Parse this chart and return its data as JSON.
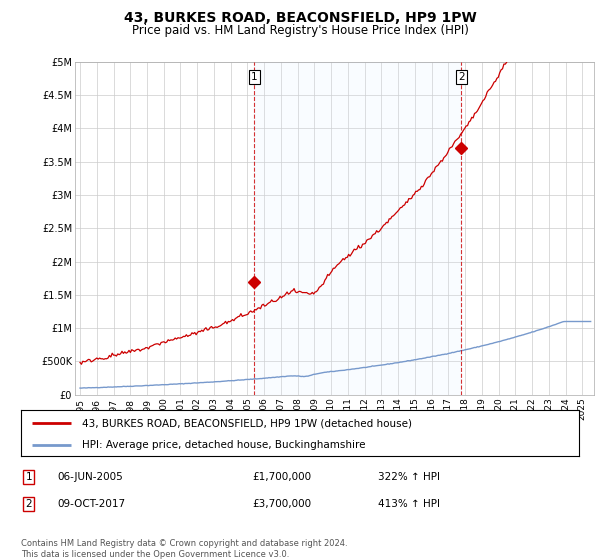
{
  "title": "43, BURKES ROAD, BEACONSFIELD, HP9 1PW",
  "subtitle": "Price paid vs. HM Land Registry's House Price Index (HPI)",
  "title_fontsize": 10,
  "subtitle_fontsize": 8.5,
  "background_color": "#ffffff",
  "plot_bg_color": "#ffffff",
  "grid_color": "#cccccc",
  "hpi_line_color": "#7799cc",
  "price_line_color": "#cc0000",
  "shade_color": "#ddeeff",
  "annotation1": {
    "label": "1",
    "date": "06-JUN-2005",
    "price": "£1,700,000",
    "hpi": "322% ↑ HPI"
  },
  "annotation2": {
    "label": "2",
    "date": "09-OCT-2017",
    "price": "£3,700,000",
    "hpi": "413% ↑ HPI"
  },
  "legend_line1": "43, BURKES ROAD, BEACONSFIELD, HP9 1PW (detached house)",
  "legend_line2": "HPI: Average price, detached house, Buckinghamshire",
  "footer": "Contains HM Land Registry data © Crown copyright and database right 2024.\nThis data is licensed under the Open Government Licence v3.0.",
  "ylim": [
    0,
    5000000
  ],
  "yticks": [
    0,
    500000,
    1000000,
    1500000,
    2000000,
    2500000,
    3000000,
    3500000,
    4000000,
    4500000,
    5000000
  ],
  "ytick_labels": [
    "£0",
    "£500K",
    "£1M",
    "£1.5M",
    "£2M",
    "£2.5M",
    "£3M",
    "£3.5M",
    "£4M",
    "£4.5M",
    "£5M"
  ],
  "xlim_min": 1994.7,
  "xlim_max": 2025.7,
  "years_int": [
    1995,
    1996,
    1997,
    1998,
    1999,
    2000,
    2001,
    2002,
    2003,
    2004,
    2005,
    2006,
    2007,
    2008,
    2009,
    2010,
    2011,
    2012,
    2013,
    2014,
    2015,
    2016,
    2017,
    2018,
    2019,
    2020,
    2021,
    2022,
    2023,
    2024,
    2025
  ],
  "purchase1_x": 2005.42,
  "purchase1_y": 1700000,
  "purchase2_x": 2017.77,
  "purchase2_y": 3700000,
  "vline1_x": 2005.42,
  "vline2_x": 2017.77
}
